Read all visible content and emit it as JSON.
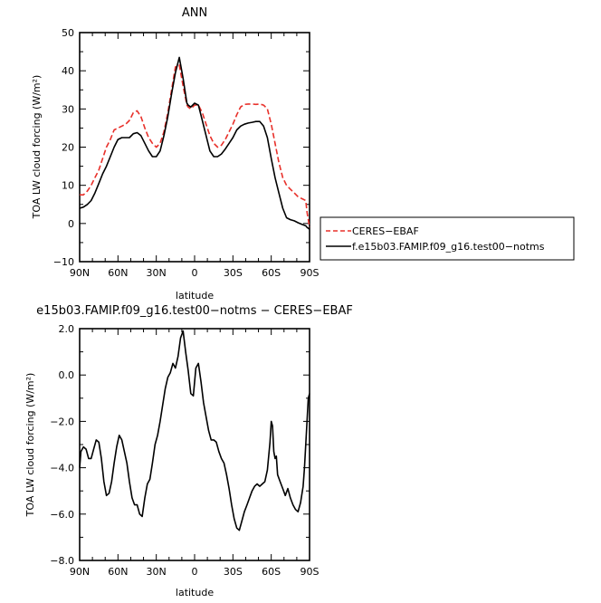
{
  "chart_data": [
    {
      "type": "line",
      "title": "ANN",
      "xlabel": "",
      "ylabel": "TOA LW cloud forcing (W/m²)",
      "xlim": [
        -90,
        90
      ],
      "ylim": [
        -10,
        50
      ],
      "xticks": [
        -90,
        -60,
        -30,
        0,
        30,
        60,
        90
      ],
      "xtick_labels": [
        "90N",
        "60N",
        "30N",
        "0",
        "30S",
        "60S",
        "90S"
      ],
      "yticks": [
        -10,
        0,
        10,
        20,
        30,
        40,
        50
      ],
      "ytick_labels": [
        "−10",
        "0",
        "10",
        "20",
        "30",
        "40",
        "50"
      ],
      "legend_position": "right",
      "series": [
        {
          "name": "CERES−EBAF",
          "color": "#e8302a",
          "dash": "dashed",
          "x": [
            -90,
            -87,
            -84,
            -81,
            -78,
            -75,
            -72,
            -69,
            -66,
            -63,
            -60,
            -57,
            -54,
            -51,
            -48,
            -45,
            -42,
            -39,
            -36,
            -33,
            -30,
            -27,
            -24,
            -21,
            -18,
            -15,
            -12,
            -9,
            -6,
            -5,
            -3,
            0,
            3,
            6,
            9,
            12,
            15,
            18,
            21,
            24,
            27,
            30,
            33,
            36,
            39,
            42,
            45,
            48,
            51,
            54,
            57,
            60,
            63,
            66,
            69,
            72,
            75,
            78,
            81,
            84,
            87,
            88,
            90
          ],
          "y": [
            7.5,
            7.5,
            8.5,
            10,
            12,
            14,
            17,
            20,
            22,
            24.5,
            25,
            25.5,
            26,
            27,
            29,
            29.5,
            28,
            25,
            22.5,
            21,
            20,
            21,
            24,
            29,
            35,
            41,
            41.5,
            36,
            31,
            30.5,
            30,
            31,
            31,
            29,
            26,
            23,
            21,
            20,
            20.5,
            22,
            24,
            26,
            28.5,
            30.5,
            31.2,
            31.3,
            31.3,
            31.2,
            31.3,
            31,
            30,
            26,
            21,
            16,
            12,
            10,
            9,
            8,
            7,
            6.5,
            6,
            3,
            -1
          ]
        },
        {
          "name": "f.e15b03.FAMIP.f09_g16.test00−notms",
          "color": "#000000",
          "dash": "solid",
          "x": [
            -90,
            -87,
            -84,
            -81,
            -78,
            -75,
            -72,
            -69,
            -66,
            -63,
            -60,
            -57,
            -54,
            -51,
            -48,
            -45,
            -42,
            -39,
            -36,
            -33,
            -30,
            -27,
            -24,
            -21,
            -18,
            -15,
            -12,
            -9,
            -6,
            -5,
            -3,
            0,
            3,
            6,
            9,
            12,
            15,
            18,
            21,
            24,
            27,
            30,
            33,
            36,
            39,
            42,
            45,
            48,
            51,
            54,
            57,
            60,
            63,
            66,
            69,
            72,
            75,
            78,
            81,
            84,
            87,
            88,
            90
          ],
          "y": [
            4,
            4.3,
            5,
            6,
            8,
            10.5,
            13,
            15,
            17.5,
            20,
            22,
            22.5,
            22.5,
            22.5,
            23.5,
            23.8,
            23,
            21,
            19,
            17.5,
            17.5,
            19,
            23,
            28,
            34,
            39.5,
            43.5,
            38,
            31.5,
            31,
            30.5,
            31.5,
            31,
            27,
            23,
            19,
            17.5,
            17.5,
            18.2,
            19.5,
            21,
            22.5,
            24.5,
            25.5,
            26,
            26.3,
            26.5,
            26.7,
            26.7,
            25.5,
            22.5,
            17,
            12,
            8,
            4,
            1.5,
            1,
            0.7,
            0.2,
            -0.2,
            -0.6,
            -1,
            -1.5
          ]
        }
      ]
    },
    {
      "type": "line",
      "title": "e15b03.FAMIP.f09_g16.test00−notms − CERES−EBAF",
      "xlabel": "latitude",
      "ylabel": "TOA LW cloud forcing (W/m²)",
      "xlim": [
        -90,
        90
      ],
      "ylim": [
        -8,
        2
      ],
      "xticks": [
        -90,
        -60,
        -30,
        0,
        30,
        60,
        90
      ],
      "xtick_labels": [
        "90N",
        "60N",
        "30N",
        "0",
        "30S",
        "60S",
        "90S"
      ],
      "yticks": [
        -8,
        -6,
        -4,
        -2,
        0,
        2
      ],
      "ytick_labels": [
        "−8.0",
        "−6.0",
        "−4.0",
        "−2.0",
        "0.0",
        "2.0"
      ],
      "series": [
        {
          "name": "",
          "color": "#000000",
          "dash": "solid",
          "x": [
            -90,
            -89,
            -87,
            -85,
            -83,
            -81,
            -79,
            -77,
            -75,
            -73,
            -71,
            -69,
            -67,
            -65,
            -63,
            -61,
            -59,
            -57,
            -55,
            -53,
            -51,
            -49,
            -47,
            -45,
            -43,
            -41,
            -39,
            -37,
            -35,
            -33,
            -31,
            -29,
            -27,
            -25,
            -23,
            -21,
            -19,
            -17,
            -15,
            -13,
            -11,
            -9,
            -7,
            -5,
            -3,
            -1,
            1,
            3,
            5,
            7,
            9,
            11,
            13,
            15,
            17,
            19,
            21,
            23,
            25,
            27,
            29,
            31,
            33,
            35,
            37,
            39,
            41,
            43,
            45,
            47,
            49,
            51,
            53,
            55,
            57,
            59,
            60,
            61,
            62,
            63,
            64,
            65,
            67,
            69,
            71,
            73,
            75,
            77,
            79,
            81,
            83,
            85,
            86,
            87,
            88,
            89,
            90
          ],
          "y": [
            -4.0,
            -3.3,
            -3.1,
            -3.2,
            -3.6,
            -3.6,
            -3.2,
            -2.8,
            -2.9,
            -3.6,
            -4.6,
            -5.2,
            -5.1,
            -4.6,
            -3.8,
            -3.1,
            -2.6,
            -2.8,
            -3.3,
            -3.8,
            -4.6,
            -5.3,
            -5.6,
            -5.6,
            -6.0,
            -6.1,
            -5.3,
            -4.7,
            -4.5,
            -3.8,
            -3.0,
            -2.6,
            -2.0,
            -1.3,
            -0.6,
            -0.1,
            0.1,
            0.5,
            0.3,
            0.8,
            1.6,
            1.9,
            1.0,
            0.2,
            -0.8,
            -0.9,
            0.3,
            0.5,
            -0.3,
            -1.2,
            -1.8,
            -2.4,
            -2.8,
            -2.8,
            -2.9,
            -3.3,
            -3.6,
            -3.8,
            -4.3,
            -4.9,
            -5.6,
            -6.2,
            -6.6,
            -6.7,
            -6.3,
            -5.9,
            -5.6,
            -5.3,
            -5.0,
            -4.8,
            -4.7,
            -4.8,
            -4.7,
            -4.6,
            -4.1,
            -2.9,
            -2.0,
            -2.2,
            -3.3,
            -3.6,
            -3.5,
            -4.3,
            -4.6,
            -4.9,
            -5.2,
            -4.9,
            -5.3,
            -5.6,
            -5.8,
            -5.9,
            -5.5,
            -4.8,
            -4.0,
            -3.0,
            -2.0,
            -1.0,
            -0.8
          ]
        }
      ]
    }
  ]
}
